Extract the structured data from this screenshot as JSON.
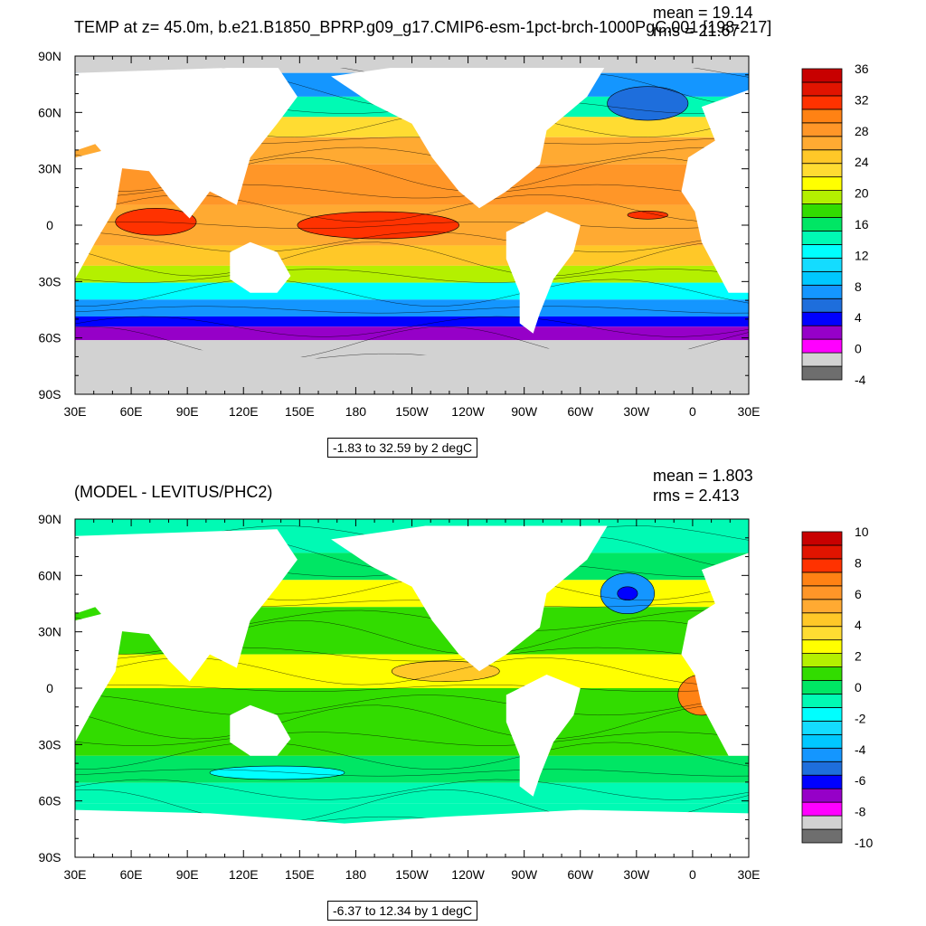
{
  "panels": [
    {
      "title": "TEMP at z=  45.0m, b.e21.B1850_BPRP.g09_g17.CMIP6-esm-1pct-brch-1000PgC.001 [198-217]",
      "stats": {
        "mean": "mean = 19.14",
        "rms": "rms = 21.67"
      },
      "range_label": "-1.83 to 32.59 by 2 degC",
      "colorbar": {
        "colors": [
          "#6e6e6e",
          "#d2d2d2",
          "#ff00ff",
          "#9600c8",
          "#0000ff",
          "#1e6edc",
          "#1496ff",
          "#00c8ff",
          "#14dcff",
          "#00ffff",
          "#00fab4",
          "#00e664",
          "#32dc00",
          "#b4f000",
          "#ffff00",
          "#ffdc32",
          "#ffc828",
          "#ffaa32",
          "#ff9628",
          "#ff8214",
          "#ff3200",
          "#e11400",
          "#c80000"
        ],
        "labels": [
          "36",
          "32",
          "28",
          "24",
          "20",
          "16",
          "12",
          "8",
          "4",
          "0",
          "-4"
        ]
      }
    },
    {
      "title": "(MODEL - LEVITUS/PHC2)",
      "stats": {
        "mean": "mean = 1.803",
        "rms": "rms = 2.413"
      },
      "range_label": "-6.37 to 12.34 by 1 degC",
      "colorbar": {
        "colors": [
          "#6e6e6e",
          "#d2d2d2",
          "#ff00ff",
          "#9600c8",
          "#0000ff",
          "#1e6edc",
          "#1496ff",
          "#00c8ff",
          "#14dcff",
          "#00ffff",
          "#00fab4",
          "#00e664",
          "#32dc00",
          "#b4f000",
          "#ffff00",
          "#ffdc32",
          "#ffc828",
          "#ffaa32",
          "#ff9628",
          "#ff8214",
          "#ff3200",
          "#e11400",
          "#c80000"
        ],
        "labels": [
          "10",
          "8",
          "6",
          "4",
          "2",
          "0",
          "-2",
          "-4",
          "-6",
          "-8",
          "-10"
        ]
      }
    }
  ],
  "axes": {
    "lat_labels": [
      "90N",
      "60N",
      "30N",
      "0",
      "30S",
      "60S",
      "90S"
    ],
    "lon_labels": [
      "30E",
      "60E",
      "90E",
      "120E",
      "150E",
      "180",
      "150W",
      "120W",
      "90W",
      "60W",
      "30W",
      "0",
      "30E"
    ]
  },
  "colors": {
    "land": "#ffffff",
    "ice": "#d2d2d2",
    "ocean_warm": "#ff8c1e",
    "ocean_hot": "#ff3200"
  }
}
